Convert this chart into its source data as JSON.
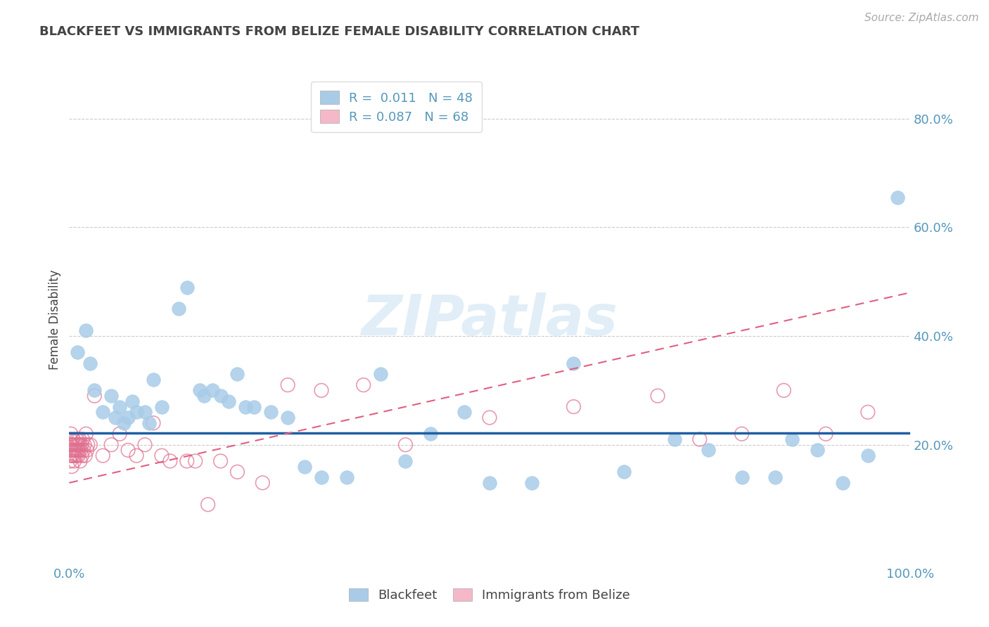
{
  "title": "BLACKFEET VS IMMIGRANTS FROM BELIZE FEMALE DISABILITY CORRELATION CHART",
  "source": "Source: ZipAtlas.com",
  "ylabel": "Female Disability",
  "color_blue": "#a8cce8",
  "color_pink": "#f5b8c8",
  "color_blue_line": "#1f5fa6",
  "color_pink_line": "#e06080",
  "color_pink_outline": "#e07090",
  "background": "#ffffff",
  "grid_color": "#cccccc",
  "title_color": "#444444",
  "axis_label_color": "#5599bb",
  "watermark_color": "#c5dff0",
  "watermark": "ZIPatlas",
  "xlim": [
    0.0,
    1.0
  ],
  "ylim": [
    -0.02,
    0.88
  ],
  "blue_line_y": 0.222,
  "pink_line_y0": 0.13,
  "pink_line_y1": 0.48,
  "blue_x": [
    0.01,
    0.02,
    0.025,
    0.03,
    0.04,
    0.05,
    0.055,
    0.06,
    0.065,
    0.07,
    0.075,
    0.08,
    0.09,
    0.095,
    0.1,
    0.11,
    0.13,
    0.14,
    0.155,
    0.16,
    0.17,
    0.18,
    0.19,
    0.2,
    0.21,
    0.22,
    0.24,
    0.26,
    0.28,
    0.3,
    0.33,
    0.37,
    0.4,
    0.43,
    0.47,
    0.5,
    0.55,
    0.6,
    0.66,
    0.72,
    0.76,
    0.8,
    0.84,
    0.86,
    0.89,
    0.92,
    0.95,
    0.985
  ],
  "blue_y": [
    0.37,
    0.41,
    0.35,
    0.3,
    0.26,
    0.29,
    0.25,
    0.27,
    0.24,
    0.25,
    0.28,
    0.26,
    0.26,
    0.24,
    0.32,
    0.27,
    0.45,
    0.49,
    0.3,
    0.29,
    0.3,
    0.29,
    0.28,
    0.33,
    0.27,
    0.27,
    0.26,
    0.25,
    0.16,
    0.14,
    0.14,
    0.33,
    0.17,
    0.22,
    0.26,
    0.13,
    0.13,
    0.35,
    0.15,
    0.21,
    0.19,
    0.14,
    0.14,
    0.21,
    0.19,
    0.13,
    0.18,
    0.655
  ],
  "pink_x": [
    0.001,
    0.001,
    0.001,
    0.002,
    0.002,
    0.002,
    0.003,
    0.003,
    0.003,
    0.004,
    0.004,
    0.005,
    0.005,
    0.006,
    0.006,
    0.007,
    0.007,
    0.008,
    0.008,
    0.009,
    0.009,
    0.01,
    0.01,
    0.011,
    0.011,
    0.012,
    0.012,
    0.013,
    0.013,
    0.014,
    0.015,
    0.015,
    0.016,
    0.017,
    0.018,
    0.019,
    0.02,
    0.021,
    0.022,
    0.025,
    0.03,
    0.04,
    0.05,
    0.06,
    0.07,
    0.08,
    0.09,
    0.1,
    0.11,
    0.12,
    0.14,
    0.15,
    0.165,
    0.18,
    0.2,
    0.23,
    0.26,
    0.3,
    0.35,
    0.4,
    0.5,
    0.6,
    0.7,
    0.75,
    0.8,
    0.85,
    0.9,
    0.95
  ],
  "pink_y": [
    0.21,
    0.19,
    0.17,
    0.22,
    0.2,
    0.18,
    0.2,
    0.18,
    0.16,
    0.21,
    0.19,
    0.2,
    0.18,
    0.19,
    0.17,
    0.2,
    0.18,
    0.21,
    0.19,
    0.2,
    0.18,
    0.21,
    0.19,
    0.2,
    0.18,
    0.21,
    0.19,
    0.2,
    0.17,
    0.19,
    0.2,
    0.18,
    0.21,
    0.19,
    0.2,
    0.18,
    0.22,
    0.19,
    0.2,
    0.2,
    0.29,
    0.18,
    0.2,
    0.22,
    0.19,
    0.18,
    0.2,
    0.24,
    0.18,
    0.17,
    0.17,
    0.17,
    0.09,
    0.17,
    0.15,
    0.13,
    0.31,
    0.3,
    0.31,
    0.2,
    0.25,
    0.27,
    0.29,
    0.21,
    0.22,
    0.3,
    0.22,
    0.26
  ]
}
